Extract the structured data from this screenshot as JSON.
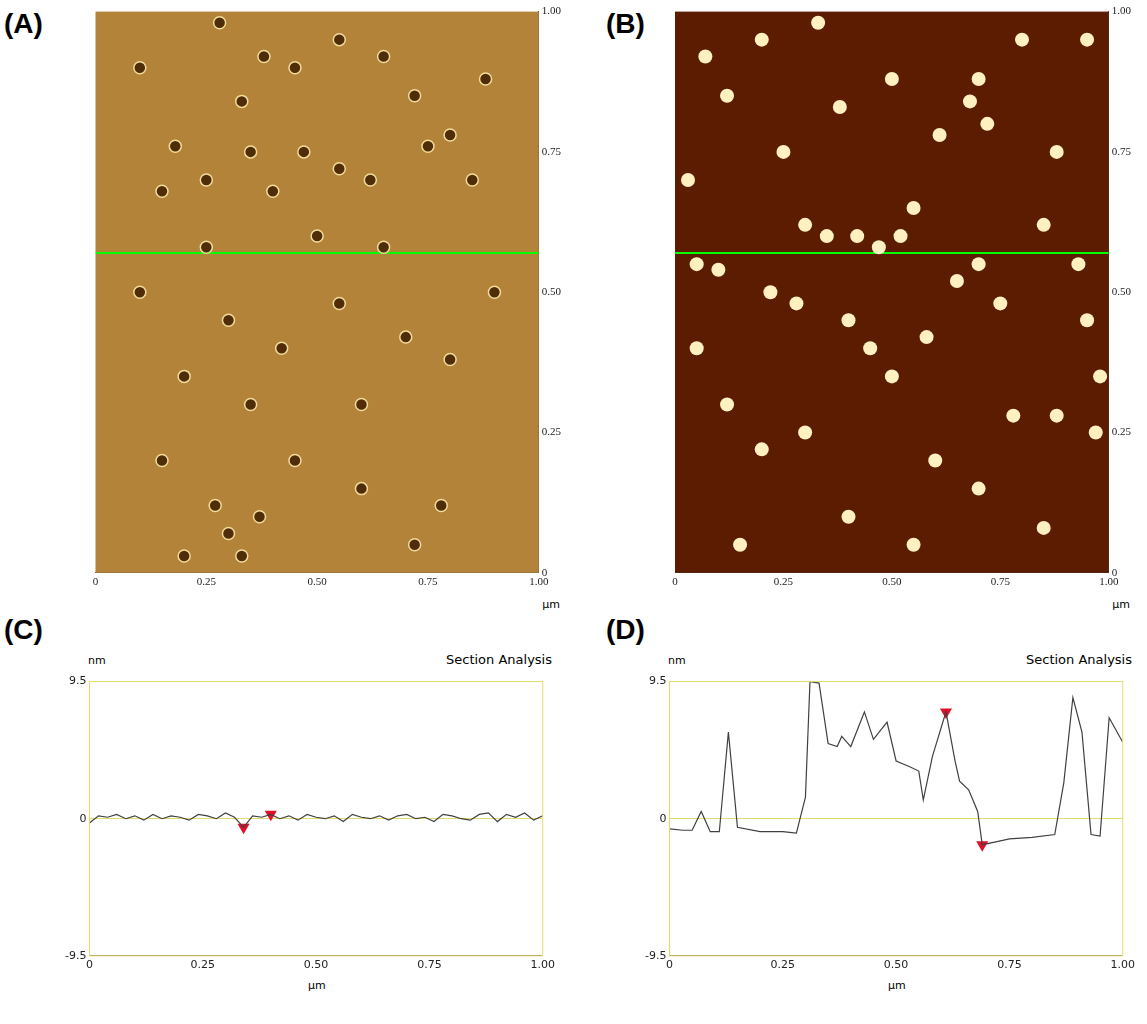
{
  "chart_data": [
    {
      "type": "scatter",
      "label": "(A)",
      "x_label": "µm",
      "color": "#b3833a",
      "grid": false,
      "xlim": [
        0,
        1
      ],
      "xticks": [
        0,
        0.25,
        {
          "value": 0.5,
          "label": "0.50"
        },
        0.75,
        {
          "value": 1,
          "label": "1.00"
        }
      ],
      "ylim": [
        0,
        1
      ],
      "yticks": [
        0,
        0.25,
        {
          "value": 0.5,
          "label": "0.50"
        },
        0.75,
        {
          "value": 1,
          "label": "1.00"
        }
      ],
      "series": [
        {
          "marker": "ring",
          "color": "#f3dc9a",
          "x": [
            0.28,
            0.33,
            0.38,
            0.55,
            0.72,
            0.35,
            0.47,
            0.62,
            0.75,
            0.8,
            0.18,
            0.25,
            0.4,
            0.55,
            0.15,
            0.85,
            0.3,
            0.42,
            0.55,
            0.7,
            0.2,
            0.6,
            0.8,
            0.35,
            0.1,
            0.9,
            0.3,
            0.33,
            0.27,
            0.37,
            0.2,
            0.78,
            0.72,
            0.6,
            0.45,
            0.15,
            0.5,
            0.65,
            0.25,
            0.88,
            0.1,
            0.45,
            0.65
          ],
          "values": [
            0.98,
            0.84,
            0.92,
            0.95,
            0.85,
            0.75,
            0.75,
            0.7,
            0.76,
            0.78,
            0.76,
            0.7,
            0.68,
            0.72,
            0.68,
            0.7,
            0.45,
            0.4,
            0.48,
            0.42,
            0.35,
            0.3,
            0.38,
            0.3,
            0.5,
            0.5,
            0.07,
            0.03,
            0.12,
            0.1,
            0.03,
            0.12,
            0.05,
            0.15,
            0.2,
            0.2,
            0.6,
            0.58,
            0.58,
            0.88,
            0.9,
            0.9,
            0.92
          ]
        },
        {
          "type": "line",
          "color": "#00ff00",
          "x": [
            0,
            1
          ],
          "values": [
            0.57,
            0.57
          ]
        }
      ]
    },
    {
      "type": "scatter",
      "label": "(B)",
      "x_label": "µm",
      "color": "#5c1c02",
      "grid": false,
      "xlim": [
        0,
        1
      ],
      "xticks": [
        0,
        0.25,
        {
          "value": 0.5,
          "label": "0.50"
        },
        0.75,
        {
          "value": 1,
          "label": "1.00"
        }
      ],
      "ylim": [
        0,
        1
      ],
      "yticks": [
        0,
        0.25,
        {
          "value": 0.5,
          "label": "0.50"
        },
        0.75,
        {
          "value": 1,
          "label": "1.00"
        }
      ],
      "series": [
        {
          "marker": "dot",
          "color": "#fff0c0",
          "x": [
            0.07,
            0.12,
            0.2,
            0.33,
            0.38,
            0.5,
            0.68,
            0.7,
            0.72,
            0.61,
            0.55,
            0.3,
            0.35,
            0.42,
            0.47,
            0.52,
            0.05,
            0.1,
            0.22,
            0.28,
            0.4,
            0.45,
            0.5,
            0.58,
            0.65,
            0.7,
            0.75,
            0.85,
            0.93,
            0.95,
            0.98,
            0.97,
            0.78,
            0.88,
            0.3,
            0.2,
            0.12,
            0.05,
            0.6,
            0.7,
            0.4,
            0.55,
            0.15,
            0.85,
            0.03,
            0.25,
            0.8,
            0.95,
            0.88
          ],
          "values": [
            0.92,
            0.85,
            0.95,
            0.98,
            0.83,
            0.88,
            0.84,
            0.88,
            0.8,
            0.78,
            0.65,
            0.62,
            0.6,
            0.6,
            0.58,
            0.6,
            0.55,
            0.54,
            0.5,
            0.48,
            0.45,
            0.4,
            0.35,
            0.42,
            0.52,
            0.55,
            0.48,
            0.62,
            0.55,
            0.45,
            0.35,
            0.25,
            0.28,
            0.28,
            0.25,
            0.22,
            0.3,
            0.4,
            0.2,
            0.15,
            0.1,
            0.05,
            0.05,
            0.08,
            0.7,
            0.75,
            0.95,
            0.95,
            0.75
          ]
        },
        {
          "type": "line",
          "color": "#00ff00",
          "x": [
            0,
            1
          ],
          "values": [
            0.57,
            0.57
          ]
        }
      ]
    },
    {
      "type": "line",
      "label": "(C)",
      "title": "Section Analysis",
      "y_label": "nm",
      "x_label": "µm",
      "grid": true,
      "xlim": [
        0,
        1
      ],
      "xticks": [
        0,
        0.25,
        {
          "value": 0.5,
          "label": "0.50"
        },
        0.75,
        {
          "value": 1,
          "label": "1.00"
        }
      ],
      "ylim": [
        -9.5,
        9.5
      ],
      "yticks": [
        -9.5,
        0,
        9.5
      ],
      "x": [
        0,
        0.02,
        0.04,
        0.06,
        0.08,
        0.1,
        0.12,
        0.14,
        0.16,
        0.18,
        0.2,
        0.22,
        0.24,
        0.26,
        0.28,
        0.3,
        0.32,
        0.34,
        0.36,
        0.38,
        0.4,
        0.42,
        0.44,
        0.46,
        0.48,
        0.5,
        0.52,
        0.54,
        0.56,
        0.58,
        0.6,
        0.62,
        0.64,
        0.66,
        0.68,
        0.7,
        0.72,
        0.74,
        0.76,
        0.78,
        0.8,
        0.82,
        0.84,
        0.86,
        0.88,
        0.9,
        0.92,
        0.94,
        0.96,
        0.98,
        1
      ],
      "series": [
        {
          "color": "#404040",
          "values": [
            -0.3,
            0.2,
            0.1,
            0.3,
            0,
            0.2,
            -0.1,
            0.3,
            0,
            0.2,
            0.1,
            -0.1,
            0.3,
            0.2,
            0,
            0.4,
            0.1,
            -0.6,
            0.2,
            0.1,
            0.3,
            0,
            0.2,
            -0.1,
            0.3,
            0.1,
            0,
            0.2,
            -0.2,
            0.3,
            0.1,
            0,
            0.2,
            -0.1,
            0.2,
            0.3,
            0,
            0.1,
            -0.2,
            0.3,
            0.2,
            0,
            -0.1,
            0.3,
            0.4,
            -0.2,
            0.3,
            0.1,
            0.4,
            -0.1,
            0.2
          ]
        },
        {
          "type": "scatter",
          "marker": "triangle-down",
          "color": "#e0102a",
          "x": [
            0.34,
            0.4
          ],
          "values": [
            -0.6,
            0.3
          ]
        }
      ]
    },
    {
      "type": "line",
      "label": "(D)",
      "title": "Section Analysis",
      "y_label": "nm",
      "x_label": "µm",
      "grid": true,
      "xlim": [
        0,
        1
      ],
      "xticks": [
        0,
        0.25,
        {
          "value": 0.5,
          "label": "0.50"
        },
        0.75,
        {
          "value": 1,
          "label": "1.00"
        }
      ],
      "ylim": [
        -9.5,
        9.5
      ],
      "yticks": [
        -9.5,
        0,
        9.5
      ],
      "x": [
        0,
        0.03,
        0.05,
        0.07,
        0.09,
        0.11,
        0.13,
        0.15,
        0.2,
        0.25,
        0.28,
        0.3,
        0.31,
        0.33,
        0.35,
        0.37,
        0.38,
        0.4,
        0.43,
        0.45,
        0.48,
        0.5,
        0.53,
        0.55,
        0.56,
        0.58,
        0.61,
        0.63,
        0.64,
        0.66,
        0.68,
        0.69,
        0.72,
        0.75,
        0.8,
        0.85,
        0.87,
        0.89,
        0.91,
        0.93,
        0.95,
        0.97,
        1
      ],
      "series": [
        {
          "color": "#404040",
          "values": [
            -0.7,
            -0.8,
            -0.8,
            0.5,
            -0.9,
            -0.9,
            6.0,
            -0.6,
            -0.9,
            -0.9,
            -1.0,
            1.5,
            9.5,
            9.4,
            5.2,
            5.0,
            5.7,
            5.0,
            7.4,
            5.5,
            6.7,
            4.0,
            3.6,
            3.3,
            1.3,
            4.3,
            7.4,
            4.0,
            2.6,
            2.0,
            0.5,
            -1.8,
            -1.6,
            -1.4,
            -1.3,
            -1.1,
            2.5,
            8.4,
            6.0,
            -1.1,
            -1.2,
            7.0,
            5.3
          ]
        },
        {
          "type": "scatter",
          "marker": "triangle-down",
          "color": "#e0102a",
          "x": [
            0.61,
            0.69
          ],
          "values": [
            7.4,
            -1.8
          ]
        }
      ]
    }
  ]
}
